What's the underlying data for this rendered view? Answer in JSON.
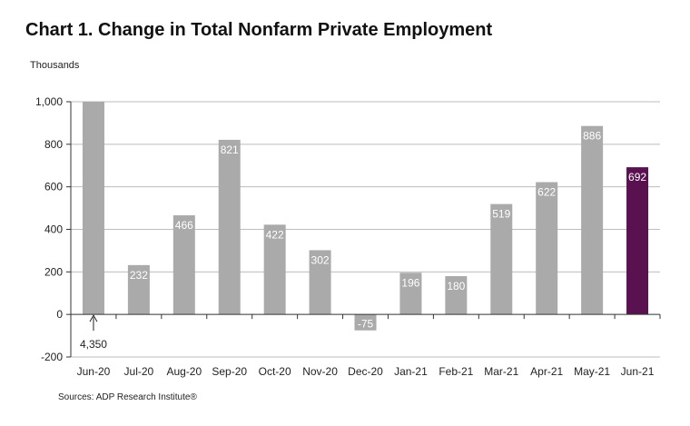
{
  "title": "Chart 1. Change in Total Nonfarm Private Employment",
  "unit_label": "Thousands",
  "source": "Sources: ADP Research Institute®",
  "colors": {
    "bar": "#aaaaaa",
    "highlight": "#5a1150",
    "axis": "#333333",
    "grid": "#bdbdbd"
  },
  "chart_data": {
    "type": "bar",
    "title": "Chart 1. Change in Total Nonfarm Private Employment",
    "ylabel": "Thousands",
    "xlabel": "",
    "ylim": [
      -200,
      1000
    ],
    "yticks": [
      "-200",
      "0",
      "200",
      "400",
      "600",
      "800",
      "1,000"
    ],
    "ytick_values": [
      -200,
      0,
      200,
      400,
      600,
      800,
      1000
    ],
    "grid": true,
    "categories": [
      "Jun-20",
      "Jul-20",
      "Aug-20",
      "Sep-20",
      "Oct-20",
      "Nov-20",
      "Dec-20",
      "Jan-21",
      "Feb-21",
      "Mar-21",
      "Apr-21",
      "May-21",
      "Jun-21"
    ],
    "values": [
      4350,
      232,
      466,
      821,
      422,
      302,
      -75,
      196,
      180,
      519,
      622,
      886,
      692
    ],
    "data_labels": [
      "4,350",
      "232",
      "466",
      "821",
      "422",
      "302",
      "-75",
      "196",
      "180",
      "519",
      "622",
      "886",
      "692"
    ],
    "highlight_index": 12,
    "truncated_bar_index": 0,
    "annotation": "4,350"
  }
}
